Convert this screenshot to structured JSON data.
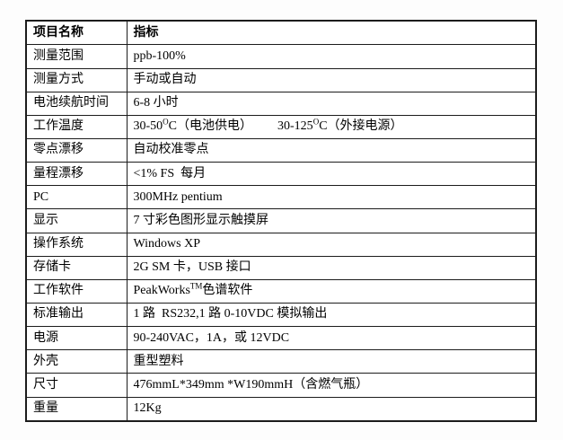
{
  "table": {
    "header": {
      "col1": "项目名称",
      "col2": "指标"
    },
    "rows": [
      {
        "label": "测量范围",
        "value": "ppb-100%"
      },
      {
        "label": "测量方式",
        "value": "手动或自动"
      },
      {
        "label": "电池续航时间",
        "value": "6-8 小时"
      },
      {
        "label": "工作温度",
        "parts": [
          "30-50",
          "O",
          "C（电池供电）",
          "30-125",
          "O",
          "C（外接电源）"
        ]
      },
      {
        "label": "零点漂移",
        "value": "自动校准零点"
      },
      {
        "label": "量程漂移",
        "value": "<1% FS  每月"
      },
      {
        "label": "PC",
        "value": "300MHz pentium"
      },
      {
        "label": "显示",
        "value": "7 寸彩色图形显示触摸屏"
      },
      {
        "label": "操作系统",
        "value": "Windows XP"
      },
      {
        "label": "存储卡",
        "value": "2G SM 卡，USB 接口"
      },
      {
        "label": "工作软件",
        "parts": [
          "PeakWorks",
          "TM",
          "色谱软件"
        ]
      },
      {
        "label": "标准输出",
        "value": "1 路  RS232,1 路 0-10VDC 模拟输出"
      },
      {
        "label": "电源",
        "value": "90-240VAC，1A，或 12VDC"
      },
      {
        "label": "外壳",
        "value": "重型塑料"
      },
      {
        "label": "尺寸",
        "value": "476mmL*349mm *W190mmH（含燃气瓶）"
      },
      {
        "label": "重量",
        "value": "12Kg"
      }
    ]
  },
  "colors": {
    "border": "#1c1c1c",
    "text": "#000000",
    "background": "#ffffff"
  }
}
